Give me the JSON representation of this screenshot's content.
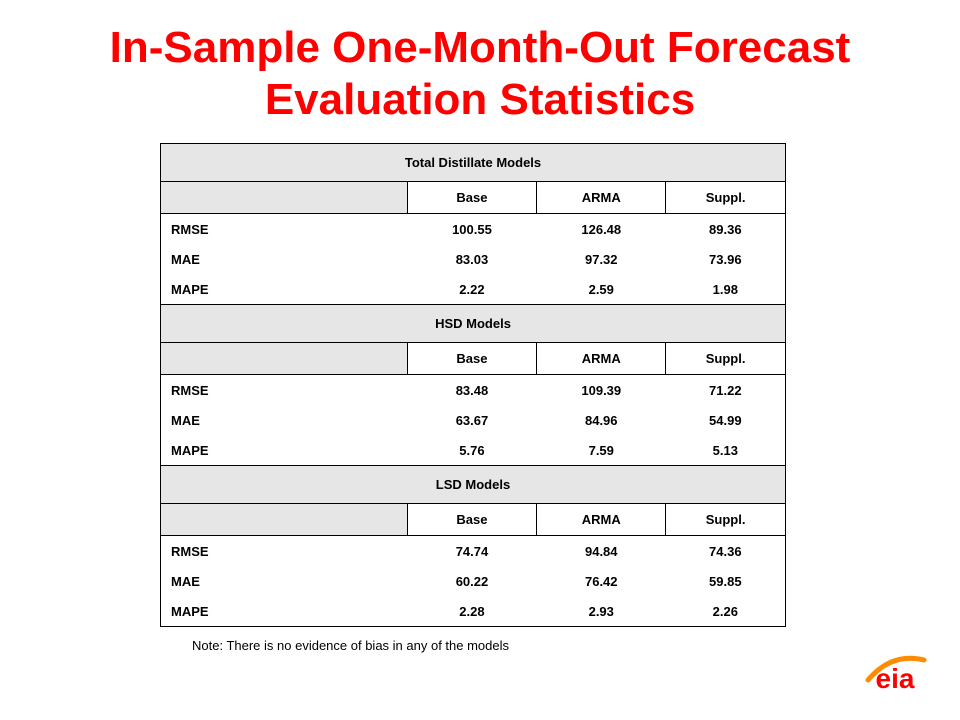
{
  "title": {
    "line1": "In-Sample One-Month-Out Forecast",
    "line2": "Evaluation Statistics"
  },
  "table": {
    "columns": [
      "Base",
      "ARMA",
      "Suppl."
    ],
    "sections": [
      {
        "heading": "Total Distillate Models",
        "rows": [
          {
            "label": "RMSE",
            "values": [
              "100.55",
              "126.48",
              "89.36"
            ]
          },
          {
            "label": "MAE",
            "values": [
              "83.03",
              "97.32",
              "73.96"
            ]
          },
          {
            "label": "MAPE",
            "values": [
              "2.22",
              "2.59",
              "1.98"
            ]
          }
        ]
      },
      {
        "heading": "HSD Models",
        "rows": [
          {
            "label": "RMSE",
            "values": [
              "83.48",
              "109.39",
              "71.22"
            ]
          },
          {
            "label": "MAE",
            "values": [
              "63.67",
              "84.96",
              "54.99"
            ]
          },
          {
            "label": "MAPE",
            "values": [
              "5.76",
              "7.59",
              "5.13"
            ]
          }
        ]
      },
      {
        "heading": "LSD Models",
        "rows": [
          {
            "label": "RMSE",
            "values": [
              "74.74",
              "94.84",
              "74.36"
            ]
          },
          {
            "label": "MAE",
            "values": [
              "60.22",
              "76.42",
              "59.85"
            ]
          },
          {
            "label": "MAPE",
            "values": [
              "2.28",
              "2.93",
              "2.26"
            ]
          }
        ]
      }
    ]
  },
  "note": "Note:  There is no evidence of bias in any of the models",
  "logo": {
    "text": "eia",
    "icon": "eia-logo",
    "colors": {
      "fill": "#ff0000",
      "swoosh": "#ff8c00"
    }
  }
}
